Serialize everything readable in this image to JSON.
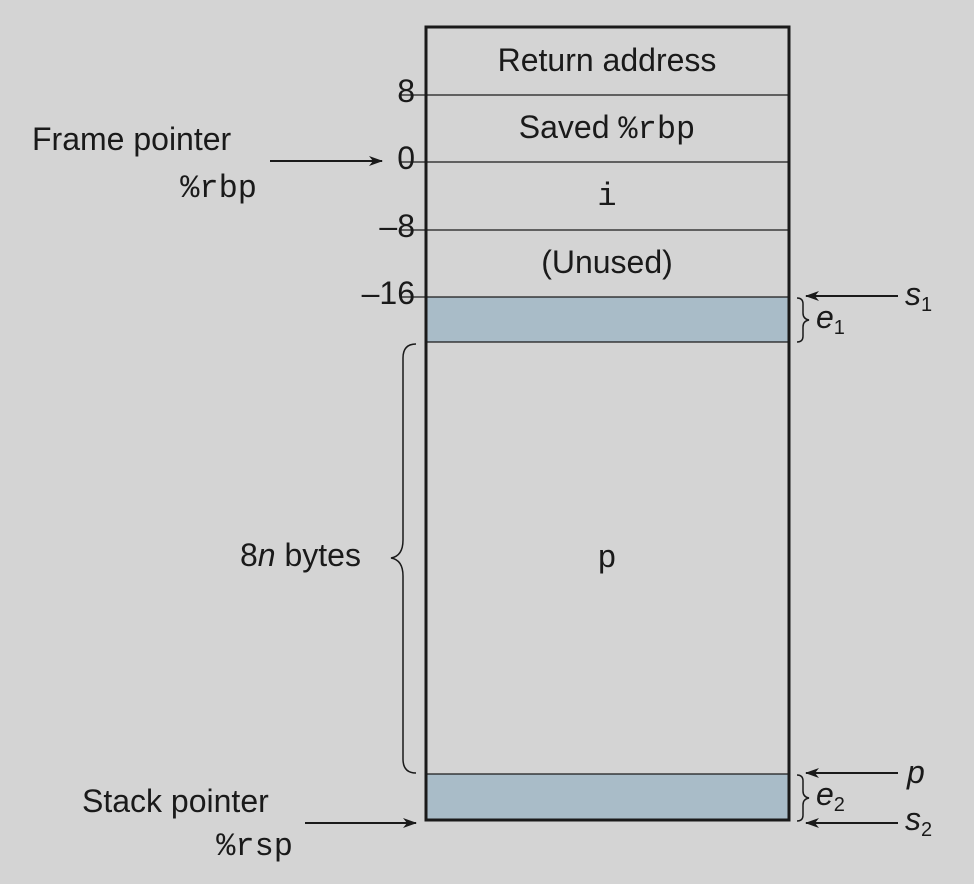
{
  "frame": {
    "cells": [
      {
        "id": "return-address",
        "label": "Return address",
        "mono": ""
      },
      {
        "id": "saved-rbp",
        "label": "Saved ",
        "mono": "%rbp"
      },
      {
        "id": "var-i",
        "label": "",
        "mono": "i"
      },
      {
        "id": "unused",
        "label": "(Unused)",
        "mono": ""
      },
      {
        "id": "pad-top",
        "label": "",
        "mono": ""
      },
      {
        "id": "array-p",
        "label": "",
        "mono": "p"
      },
      {
        "id": "pad-bottom",
        "label": "",
        "mono": ""
      }
    ],
    "offsets": [
      "8",
      "0",
      "–8",
      "–16"
    ],
    "fill_color": "#a9bcc8",
    "background_color": "#d4d4d4"
  },
  "labels": {
    "frame_pointer": "Frame pointer",
    "frame_pointer_reg": "%rbp",
    "stack_pointer": "Stack pointer",
    "stack_pointer_reg": "%rsp",
    "size_num": "8",
    "size_var": "n",
    "size_unit": " bytes",
    "s1": "s",
    "s1_sub": "1",
    "e1": "e",
    "e1_sub": "1",
    "p": "p",
    "e2": "e",
    "e2_sub": "2",
    "s2": "s",
    "s2_sub": "2"
  }
}
